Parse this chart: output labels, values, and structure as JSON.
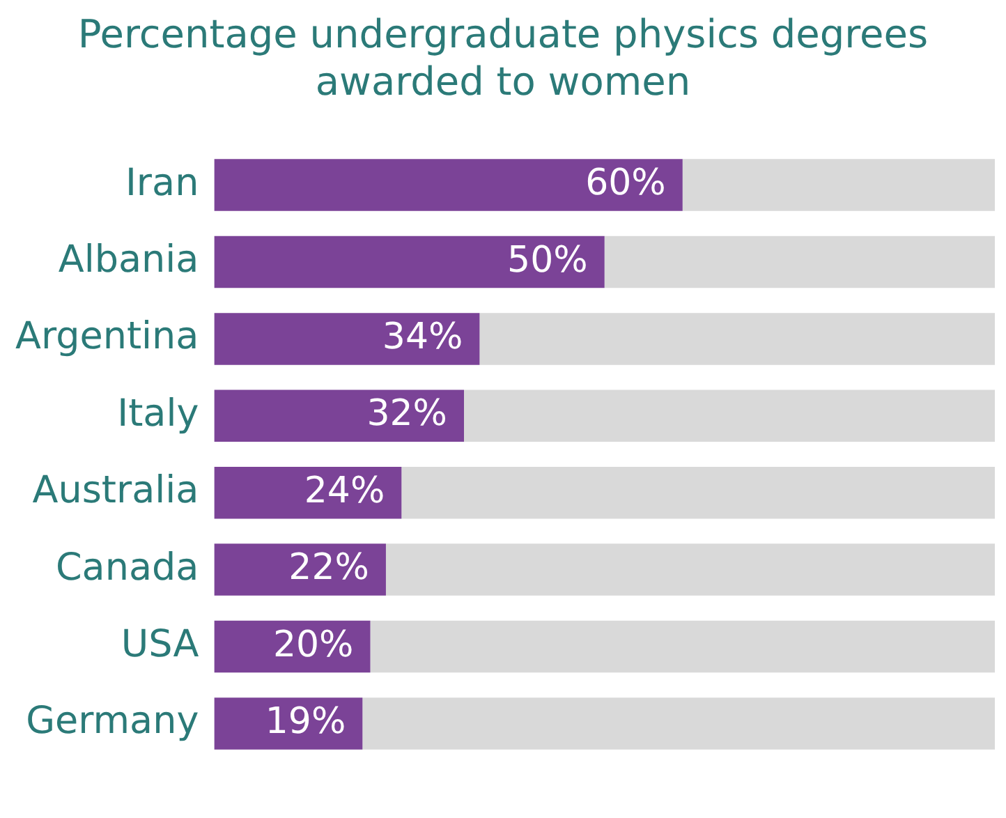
{
  "chart_data": {
    "type": "bar",
    "title": "Percentage undergraduate physics degrees awarded to women",
    "orientation": "horizontal",
    "stacked": true,
    "tick_labels": "y",
    "legend": false,
    "categories": [
      "Iran",
      "Albania",
      "Argentina",
      "Italy",
      "Australia",
      "Canada",
      "USA",
      "Germany"
    ],
    "xlim": [
      0,
      100
    ],
    "series": [
      {
        "color": "#7b4397",
        "values": [
          60,
          50,
          34,
          32,
          24,
          22,
          20,
          19
        ],
        "value_labels": [
          "60%",
          "50%",
          "34%",
          "32%",
          "24%",
          "22%",
          "20%",
          "19%"
        ]
      },
      {
        "color": "#d9d9d9",
        "values": [
          40,
          50,
          66,
          68,
          76,
          78,
          80,
          81
        ]
      }
    ]
  }
}
